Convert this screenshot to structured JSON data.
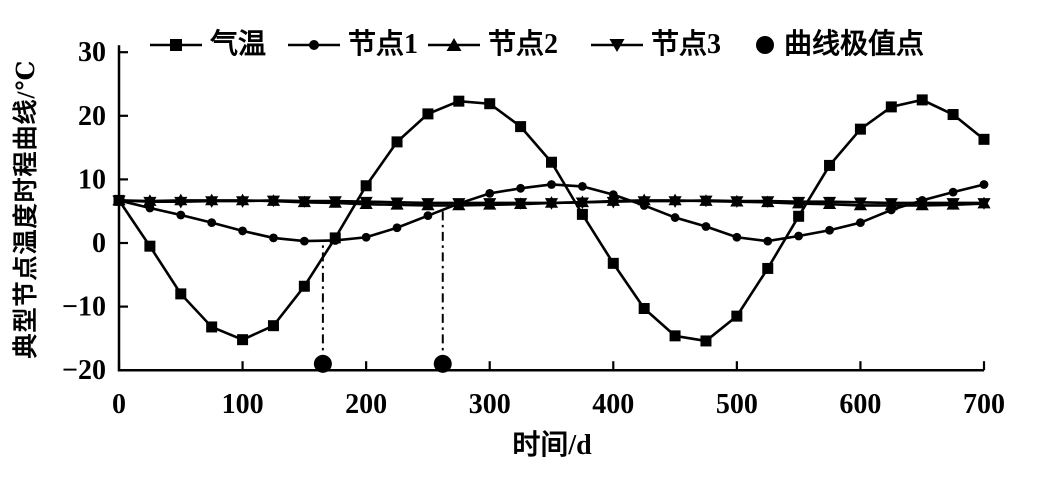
{
  "chart_data": {
    "type": "line",
    "title": "",
    "xlabel": "时间/d",
    "ylabel": "典型节点温度时程曲线/℃",
    "xlim": [
      0,
      700
    ],
    "ylim": [
      -20,
      30
    ],
    "xticks": [
      0,
      100,
      200,
      300,
      400,
      500,
      600,
      700
    ],
    "yticks": [
      -20,
      -10,
      0,
      10,
      20,
      30
    ],
    "grid": false,
    "legend_position": "top",
    "x": [
      0,
      25,
      50,
      75,
      100,
      125,
      150,
      175,
      200,
      225,
      250,
      275,
      300,
      325,
      350,
      375,
      400,
      425,
      450,
      475,
      500,
      525,
      550,
      575,
      600,
      625,
      650,
      675,
      700
    ],
    "series": [
      {
        "name": "气温",
        "marker": "square",
        "values": [
          6.7,
          -0.5,
          -8.0,
          -13.2,
          -15.2,
          -13.0,
          -6.8,
          0.8,
          9.0,
          15.9,
          20.3,
          22.3,
          21.9,
          18.3,
          12.7,
          4.5,
          -3.2,
          -10.3,
          -14.6,
          -15.4,
          -11.5,
          -4.0,
          4.2,
          12.2,
          17.9,
          21.4,
          22.5,
          20.2,
          16.3
        ]
      },
      {
        "name": "节点1",
        "marker": "circle",
        "values": [
          6.7,
          5.5,
          4.4,
          3.2,
          1.9,
          0.8,
          0.3,
          0.4,
          0.9,
          2.4,
          4.3,
          6.2,
          7.8,
          8.6,
          9.2,
          8.9,
          7.6,
          5.9,
          4.0,
          2.6,
          0.9,
          0.3,
          1.1,
          2.0,
          3.2,
          5.2,
          6.7,
          8.0,
          9.2
        ]
      },
      {
        "name": "节点2",
        "marker": "triangle-up",
        "values": [
          6.7,
          6.6,
          6.7,
          6.7,
          6.7,
          6.6,
          6.4,
          6.3,
          6.1,
          6.0,
          5.9,
          5.9,
          6.0,
          6.1,
          6.3,
          6.4,
          6.6,
          6.7,
          6.7,
          6.6,
          6.5,
          6.4,
          6.2,
          6.1,
          5.9,
          5.9,
          5.9,
          6.0,
          6.2
        ]
      },
      {
        "name": "节点3",
        "marker": "triangle-down",
        "values": [
          6.7,
          6.5,
          6.5,
          6.6,
          6.6,
          6.7,
          6.6,
          6.6,
          6.5,
          6.4,
          6.3,
          6.3,
          6.3,
          6.3,
          6.3,
          6.4,
          6.5,
          6.6,
          6.6,
          6.7,
          6.6,
          6.6,
          6.5,
          6.5,
          6.4,
          6.3,
          6.3,
          6.3,
          6.3
        ]
      }
    ],
    "extreme_points": {
      "name": "曲线极值点",
      "marker": "filled-circle",
      "points": [
        {
          "x": 165,
          "y": -19,
          "line_top_y": 0.3
        },
        {
          "x": 262,
          "y": -19,
          "line_top_y": 5.5
        }
      ],
      "callout_line_style": "dash-dot"
    },
    "colors": {
      "foreground": "#000000",
      "background": "#ffffff"
    }
  }
}
